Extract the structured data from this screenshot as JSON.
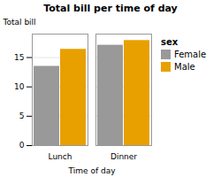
{
  "chart_data": {
    "type": "bar",
    "title": "Total bill per time of day",
    "xlabel": "Time of day",
    "ylabel": "Total bill",
    "categories": [
      "Lunch",
      "Dinner"
    ],
    "series": [
      {
        "name": "Female",
        "color": "#999999",
        "values": [
          13.5,
          17.1
        ]
      },
      {
        "name": "Male",
        "color": "#E8A000",
        "values": [
          16.4,
          17.9
        ]
      }
    ],
    "legend_title": "sex",
    "legend": "right",
    "ylim": [
      0,
      19
    ],
    "yticks": [
      0,
      5,
      10,
      15
    ],
    "grid": true
  }
}
